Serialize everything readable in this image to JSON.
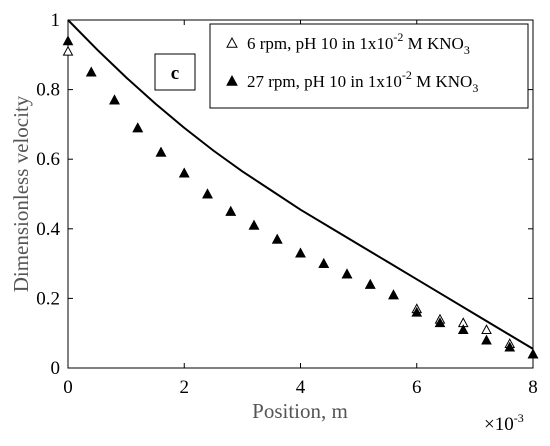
{
  "chart_data": {
    "type": "scatter",
    "title": "",
    "panel_label": "c",
    "xlabel": "Position, m",
    "ylabel": "Dimensionless velocity",
    "x_multiplier": "×10",
    "x_multiplier_exp": "-3",
    "xlim": [
      0,
      0.008
    ],
    "ylim": [
      0,
      1
    ],
    "x_ticks": [
      0,
      0.002,
      0.004,
      0.006,
      0.008
    ],
    "x_tick_labels": [
      "0",
      "2",
      "4",
      "6",
      "8"
    ],
    "y_ticks": [
      0,
      0.2,
      0.4,
      0.6,
      0.8,
      1
    ],
    "y_tick_labels": [
      "0",
      "0.2",
      "0.4",
      "0.6",
      "0.8",
      "1"
    ],
    "grid": false,
    "legend_position": "top-right",
    "legend": [
      {
        "marker": "open-triangle",
        "prefix": "6 rpm, pH 10 in 1x10",
        "exp": "-2",
        "mid": " M KNO",
        "sub": "3"
      },
      {
        "marker": "filled-triangle",
        "prefix": "27 rpm, pH 10 in 1x10",
        "exp": "-2",
        "mid": " M KNO",
        "sub": "3"
      }
    ],
    "series": [
      {
        "name": "6 rpm, pH 10 in 1x10-2 M KNO3",
        "marker": "open-triangle",
        "x": [
          0.0,
          0.0004,
          0.0008,
          0.0012,
          0.0016,
          0.002,
          0.0024,
          0.0028,
          0.0032,
          0.0036,
          0.004,
          0.0044,
          0.0048,
          0.0052,
          0.0056,
          0.006,
          0.0064,
          0.0068,
          0.0072,
          0.0076,
          0.008
        ],
        "y": [
          0.91,
          0.85,
          0.77,
          0.69,
          0.62,
          0.56,
          0.5,
          0.45,
          0.41,
          0.37,
          0.33,
          0.3,
          0.27,
          0.24,
          0.21,
          0.17,
          0.14,
          0.13,
          0.11,
          0.07,
          0.04
        ]
      },
      {
        "name": "27 rpm, pH 10 in 1x10-2 M KNO3",
        "marker": "filled-triangle",
        "x": [
          0.0,
          0.0004,
          0.0008,
          0.0012,
          0.0016,
          0.002,
          0.0024,
          0.0028,
          0.0032,
          0.0036,
          0.004,
          0.0044,
          0.0048,
          0.0052,
          0.0056,
          0.006,
          0.0064,
          0.0068,
          0.0072,
          0.0076,
          0.008
        ],
        "y": [
          0.94,
          0.85,
          0.77,
          0.69,
          0.62,
          0.56,
          0.5,
          0.45,
          0.41,
          0.37,
          0.33,
          0.3,
          0.27,
          0.24,
          0.21,
          0.16,
          0.13,
          0.11,
          0.08,
          0.06,
          0.04
        ]
      },
      {
        "name": "",
        "marker": "line",
        "x": [
          0.0,
          0.0005,
          0.001,
          0.0015,
          0.002,
          0.0025,
          0.003,
          0.0035,
          0.004,
          0.0045,
          0.005,
          0.0055,
          0.006,
          0.0065,
          0.007,
          0.0075,
          0.008
        ],
        "y": [
          1.0,
          0.915,
          0.835,
          0.76,
          0.69,
          0.625,
          0.565,
          0.51,
          0.455,
          0.405,
          0.355,
          0.305,
          0.255,
          0.205,
          0.155,
          0.105,
          0.055
        ]
      }
    ]
  }
}
